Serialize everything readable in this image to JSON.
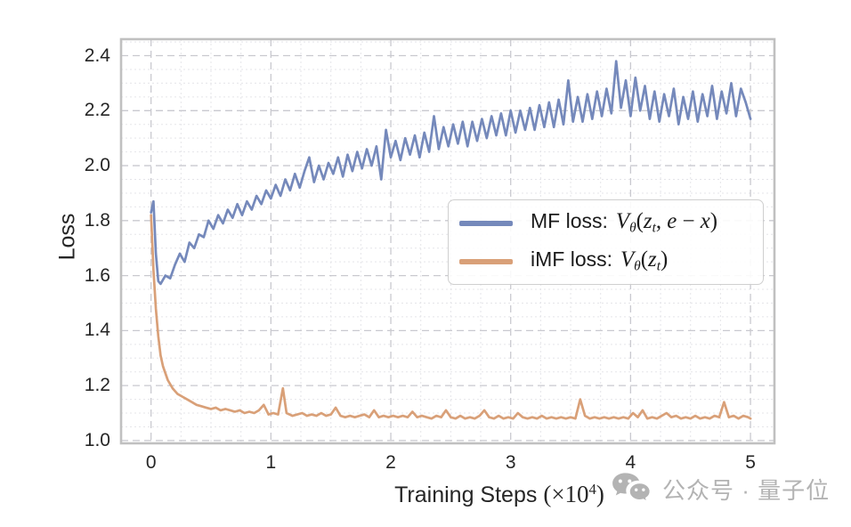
{
  "chart_data": {
    "type": "line",
    "title": "",
    "xlabel_text": "Training Steps",
    "xlabel_math": [
      [
        "(",
        "r"
      ],
      [
        "×",
        "r"
      ],
      [
        "10",
        "r"
      ],
      [
        "4",
        "sup"
      ],
      [
        ")",
        "r"
      ]
    ],
    "ylabel": "Loss",
    "xlim": [
      -0.25,
      5.2
    ],
    "ylim": [
      0.99,
      2.46
    ],
    "xticks": [
      "0",
      "1",
      "2",
      "3",
      "4",
      "5"
    ],
    "yticks": [
      "1.0",
      "1.2",
      "1.4",
      "1.6",
      "1.8",
      "2.0",
      "2.2",
      "2.4"
    ],
    "x_minor_step": 0.25,
    "y_minor_step": 0.05,
    "grid": {
      "major_color": "#c9c9cf",
      "minor_color": "#e5e5e9",
      "style": "dashed",
      "border_color": "#c0c0c0"
    },
    "legend_position": "center-right",
    "series": [
      {
        "name_plain": "MF loss:",
        "name_math": [
          [
            "V",
            "i"
          ],
          [
            "θ",
            "sub"
          ],
          [
            "(",
            "r"
          ],
          [
            "z",
            "i"
          ],
          [
            "t",
            "sub"
          ],
          [
            ", ",
            "r"
          ],
          [
            "e",
            "i"
          ],
          [
            " − ",
            "r"
          ],
          [
            "x",
            "i"
          ],
          [
            ")",
            "r"
          ]
        ],
        "color": "#7589bb",
        "points": [
          [
            0.0,
            1.83
          ],
          [
            0.02,
            1.87
          ],
          [
            0.04,
            1.68
          ],
          [
            0.06,
            1.58
          ],
          [
            0.08,
            1.57
          ],
          [
            0.12,
            1.6
          ],
          [
            0.16,
            1.59
          ],
          [
            0.2,
            1.64
          ],
          [
            0.24,
            1.68
          ],
          [
            0.28,
            1.65
          ],
          [
            0.32,
            1.72
          ],
          [
            0.36,
            1.7
          ],
          [
            0.4,
            1.75
          ],
          [
            0.44,
            1.74
          ],
          [
            0.48,
            1.8
          ],
          [
            0.52,
            1.77
          ],
          [
            0.56,
            1.82
          ],
          [
            0.6,
            1.79
          ],
          [
            0.64,
            1.84
          ],
          [
            0.68,
            1.81
          ],
          [
            0.72,
            1.86
          ],
          [
            0.76,
            1.82
          ],
          [
            0.8,
            1.87
          ],
          [
            0.84,
            1.84
          ],
          [
            0.88,
            1.89
          ],
          [
            0.92,
            1.86
          ],
          [
            0.96,
            1.91
          ],
          [
            1.0,
            1.88
          ],
          [
            1.04,
            1.93
          ],
          [
            1.08,
            1.89
          ],
          [
            1.12,
            1.95
          ],
          [
            1.16,
            1.91
          ],
          [
            1.2,
            1.97
          ],
          [
            1.24,
            1.92
          ],
          [
            1.28,
            1.98
          ],
          [
            1.32,
            2.03
          ],
          [
            1.36,
            1.94
          ],
          [
            1.4,
            2.0
          ],
          [
            1.44,
            1.95
          ],
          [
            1.48,
            2.01
          ],
          [
            1.52,
            1.97
          ],
          [
            1.56,
            2.03
          ],
          [
            1.6,
            1.96
          ],
          [
            1.64,
            2.04
          ],
          [
            1.68,
            1.98
          ],
          [
            1.72,
            2.05
          ],
          [
            1.76,
            1.99
          ],
          [
            1.8,
            2.06
          ],
          [
            1.84,
            2.0
          ],
          [
            1.88,
            2.07
          ],
          [
            1.92,
            1.95
          ],
          [
            1.96,
            2.13
          ],
          [
            2.0,
            2.03
          ],
          [
            2.04,
            2.09
          ],
          [
            2.08,
            2.02
          ],
          [
            2.12,
            2.1
          ],
          [
            2.16,
            2.04
          ],
          [
            2.2,
            2.11
          ],
          [
            2.24,
            2.03
          ],
          [
            2.28,
            2.12
          ],
          [
            2.32,
            2.05
          ],
          [
            2.36,
            2.18
          ],
          [
            2.4,
            2.06
          ],
          [
            2.44,
            2.14
          ],
          [
            2.48,
            2.07
          ],
          [
            2.52,
            2.15
          ],
          [
            2.56,
            2.08
          ],
          [
            2.6,
            2.16
          ],
          [
            2.64,
            2.07
          ],
          [
            2.68,
            2.16
          ],
          [
            2.72,
            2.09
          ],
          [
            2.76,
            2.17
          ],
          [
            2.8,
            2.1
          ],
          [
            2.84,
            2.18
          ],
          [
            2.88,
            2.11
          ],
          [
            2.92,
            2.19
          ],
          [
            2.96,
            2.11
          ],
          [
            3.0,
            2.2
          ],
          [
            3.04,
            2.12
          ],
          [
            3.08,
            2.2
          ],
          [
            3.12,
            2.13
          ],
          [
            3.16,
            2.21
          ],
          [
            3.2,
            2.13
          ],
          [
            3.24,
            2.22
          ],
          [
            3.28,
            2.14
          ],
          [
            3.32,
            2.23
          ],
          [
            3.36,
            2.14
          ],
          [
            3.4,
            2.24
          ],
          [
            3.44,
            2.15
          ],
          [
            3.48,
            2.31
          ],
          [
            3.52,
            2.16
          ],
          [
            3.56,
            2.25
          ],
          [
            3.6,
            2.16
          ],
          [
            3.64,
            2.26
          ],
          [
            3.68,
            2.17
          ],
          [
            3.72,
            2.27
          ],
          [
            3.76,
            2.18
          ],
          [
            3.8,
            2.28
          ],
          [
            3.84,
            2.19
          ],
          [
            3.88,
            2.38
          ],
          [
            3.92,
            2.21
          ],
          [
            3.96,
            2.31
          ],
          [
            4.0,
            2.18
          ],
          [
            4.04,
            2.32
          ],
          [
            4.08,
            2.2
          ],
          [
            4.12,
            2.29
          ],
          [
            4.16,
            2.17
          ],
          [
            4.2,
            2.27
          ],
          [
            4.24,
            2.16
          ],
          [
            4.28,
            2.26
          ],
          [
            4.32,
            2.18
          ],
          [
            4.36,
            2.28
          ],
          [
            4.4,
            2.15
          ],
          [
            4.44,
            2.25
          ],
          [
            4.48,
            2.17
          ],
          [
            4.52,
            2.27
          ],
          [
            4.56,
            2.16
          ],
          [
            4.6,
            2.26
          ],
          [
            4.64,
            2.18
          ],
          [
            4.68,
            2.29
          ],
          [
            4.72,
            2.17
          ],
          [
            4.76,
            2.27
          ],
          [
            4.8,
            2.19
          ],
          [
            4.84,
            2.3
          ],
          [
            4.88,
            2.18
          ],
          [
            4.92,
            2.28
          ],
          [
            4.96,
            2.23
          ],
          [
            5.0,
            2.17
          ]
        ]
      },
      {
        "name_plain": "iMF loss:",
        "name_math": [
          [
            "V",
            "i"
          ],
          [
            "θ",
            "sub"
          ],
          [
            "(",
            "r"
          ],
          [
            "z",
            "i"
          ],
          [
            "t",
            "sub"
          ],
          [
            ")",
            "r"
          ]
        ],
        "color": "#d9a078",
        "points": [
          [
            0.0,
            1.82
          ],
          [
            0.02,
            1.62
          ],
          [
            0.04,
            1.48
          ],
          [
            0.06,
            1.38
          ],
          [
            0.08,
            1.31
          ],
          [
            0.1,
            1.27
          ],
          [
            0.14,
            1.22
          ],
          [
            0.18,
            1.19
          ],
          [
            0.22,
            1.17
          ],
          [
            0.26,
            1.16
          ],
          [
            0.3,
            1.15
          ],
          [
            0.34,
            1.14
          ],
          [
            0.38,
            1.13
          ],
          [
            0.42,
            1.125
          ],
          [
            0.46,
            1.12
          ],
          [
            0.5,
            1.115
          ],
          [
            0.54,
            1.12
          ],
          [
            0.58,
            1.11
          ],
          [
            0.62,
            1.115
          ],
          [
            0.66,
            1.11
          ],
          [
            0.7,
            1.105
          ],
          [
            0.74,
            1.11
          ],
          [
            0.78,
            1.1
          ],
          [
            0.82,
            1.105
          ],
          [
            0.86,
            1.1
          ],
          [
            0.9,
            1.11
          ],
          [
            0.94,
            1.13
          ],
          [
            0.98,
            1.095
          ],
          [
            1.02,
            1.1
          ],
          [
            1.06,
            1.095
          ],
          [
            1.1,
            1.19
          ],
          [
            1.13,
            1.1
          ],
          [
            1.18,
            1.09
          ],
          [
            1.22,
            1.095
          ],
          [
            1.26,
            1.1
          ],
          [
            1.3,
            1.09
          ],
          [
            1.34,
            1.095
          ],
          [
            1.38,
            1.09
          ],
          [
            1.42,
            1.1
          ],
          [
            1.46,
            1.09
          ],
          [
            1.5,
            1.095
          ],
          [
            1.54,
            1.12
          ],
          [
            1.58,
            1.09
          ],
          [
            1.62,
            1.085
          ],
          [
            1.66,
            1.09
          ],
          [
            1.7,
            1.085
          ],
          [
            1.74,
            1.09
          ],
          [
            1.78,
            1.095
          ],
          [
            1.82,
            1.085
          ],
          [
            1.86,
            1.11
          ],
          [
            1.9,
            1.085
          ],
          [
            1.94,
            1.09
          ],
          [
            1.98,
            1.085
          ],
          [
            2.02,
            1.09
          ],
          [
            2.06,
            1.085
          ],
          [
            2.1,
            1.09
          ],
          [
            2.14,
            1.085
          ],
          [
            2.18,
            1.105
          ],
          [
            2.22,
            1.085
          ],
          [
            2.26,
            1.09
          ],
          [
            2.3,
            1.085
          ],
          [
            2.34,
            1.08
          ],
          [
            2.38,
            1.09
          ],
          [
            2.42,
            1.085
          ],
          [
            2.46,
            1.11
          ],
          [
            2.5,
            1.085
          ],
          [
            2.54,
            1.08
          ],
          [
            2.58,
            1.09
          ],
          [
            2.62,
            1.08
          ],
          [
            2.66,
            1.085
          ],
          [
            2.7,
            1.08
          ],
          [
            2.74,
            1.09
          ],
          [
            2.78,
            1.11
          ],
          [
            2.82,
            1.085
          ],
          [
            2.86,
            1.08
          ],
          [
            2.9,
            1.09
          ],
          [
            2.94,
            1.08
          ],
          [
            2.98,
            1.085
          ],
          [
            3.02,
            1.08
          ],
          [
            3.06,
            1.1
          ],
          [
            3.1,
            1.085
          ],
          [
            3.14,
            1.08
          ],
          [
            3.18,
            1.085
          ],
          [
            3.22,
            1.08
          ],
          [
            3.26,
            1.09
          ],
          [
            3.3,
            1.08
          ],
          [
            3.34,
            1.085
          ],
          [
            3.38,
            1.08
          ],
          [
            3.42,
            1.085
          ],
          [
            3.46,
            1.08
          ],
          [
            3.5,
            1.085
          ],
          [
            3.54,
            1.08
          ],
          [
            3.58,
            1.15
          ],
          [
            3.62,
            1.09
          ],
          [
            3.66,
            1.08
          ],
          [
            3.7,
            1.085
          ],
          [
            3.74,
            1.08
          ],
          [
            3.78,
            1.085
          ],
          [
            3.82,
            1.08
          ],
          [
            3.86,
            1.085
          ],
          [
            3.9,
            1.08
          ],
          [
            3.94,
            1.085
          ],
          [
            3.98,
            1.08
          ],
          [
            4.02,
            1.1
          ],
          [
            4.06,
            1.085
          ],
          [
            4.1,
            1.11
          ],
          [
            4.14,
            1.08
          ],
          [
            4.18,
            1.085
          ],
          [
            4.22,
            1.08
          ],
          [
            4.26,
            1.09
          ],
          [
            4.3,
            1.1
          ],
          [
            4.34,
            1.085
          ],
          [
            4.38,
            1.09
          ],
          [
            4.42,
            1.08
          ],
          [
            4.46,
            1.085
          ],
          [
            4.5,
            1.08
          ],
          [
            4.54,
            1.09
          ],
          [
            4.58,
            1.08
          ],
          [
            4.62,
            1.085
          ],
          [
            4.66,
            1.08
          ],
          [
            4.7,
            1.09
          ],
          [
            4.74,
            1.085
          ],
          [
            4.78,
            1.14
          ],
          [
            4.82,
            1.085
          ],
          [
            4.86,
            1.09
          ],
          [
            4.9,
            1.08
          ],
          [
            4.94,
            1.09
          ],
          [
            4.98,
            1.085
          ],
          [
            5.0,
            1.08
          ]
        ]
      }
    ]
  },
  "watermark": {
    "text": "公众号 · 量子位",
    "icon": "wechat-icon",
    "color": "#b3b3b3"
  }
}
